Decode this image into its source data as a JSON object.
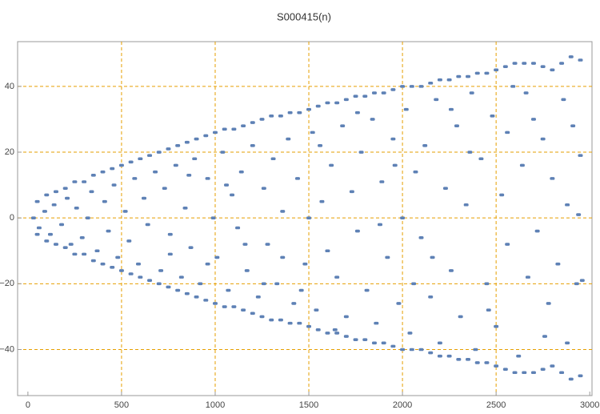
{
  "chart_data": {
    "type": "scatter",
    "title": "S000415(n)",
    "color": "#5e81b5",
    "grid_color": "#e69f00",
    "xlim": [
      -55,
      3012
    ],
    "ylim": [
      -54,
      53.6
    ],
    "xticks": [
      0,
      500,
      1000,
      1500,
      2000,
      2500,
      3000
    ],
    "yticks": [
      {
        "value": -40,
        "label": "−40"
      },
      {
        "value": -20,
        "label": "−20"
      },
      0,
      20,
      40
    ],
    "xgrid": [
      500,
      1000,
      1500,
      2000,
      2500
    ],
    "ygrid": [
      -40,
      -20,
      0,
      20,
      40
    ],
    "x": [
      50,
      100,
      150,
      200,
      250,
      300,
      350,
      400,
      450,
      500,
      550,
      600,
      650,
      700,
      750,
      800,
      850,
      900,
      950,
      1000,
      1050,
      1100,
      1150,
      1200,
      1250,
      1300,
      1350,
      1400,
      1450,
      1500,
      1550,
      1600,
      1650,
      1700,
      1750,
      1800,
      1850,
      1900,
      1950,
      2000,
      2050,
      2100,
      2150,
      2200,
      2250,
      2300,
      2350,
      2400,
      2450,
      2500,
      2550,
      2600,
      2650,
      2700,
      2750,
      2800,
      2850,
      2900,
      2950,
      50,
      100,
      150,
      200,
      250,
      300,
      350,
      400,
      450,
      500,
      550,
      600,
      650,
      700,
      750,
      800,
      850,
      900,
      950,
      1000,
      1050,
      1100,
      1150,
      1200,
      1250,
      1300,
      1350,
      1400,
      1450,
      1500,
      1550,
      1600,
      1650,
      1700,
      1750,
      1800,
      1850,
      1900,
      1950,
      2000,
      2050,
      2100,
      2150,
      2200,
      2250,
      2300,
      2350,
      2400,
      2450,
      2500,
      2550,
      2600,
      2650,
      2700,
      2750,
      2800,
      2850,
      2900,
      2950,
      30,
      60,
      90,
      120,
      140,
      180,
      210,
      230,
      260,
      290,
      320,
      340,
      370,
      410,
      430,
      460,
      480,
      520,
      540,
      570,
      590,
      620,
      640,
      680,
      710,
      730,
      760,
      790,
      820,
      840,
      870,
      890,
      920,
      960,
      990,
      1010,
      1040,
      1070,
      1090,
      1120,
      1140,
      1170,
      1200,
      1230,
      1260,
      1280,
      1310,
      1330,
      1360,
      1390,
      1420,
      1440,
      1480,
      1500,
      1520,
      1540,
      1570,
      1600,
      1620,
      1650,
      1680,
      1700,
      1730,
      1760,
      1780,
      1810,
      1840,
      1860,
      1890,
      1920,
      1950,
      1980,
      2000,
      2020,
      2040,
      2070,
      2100,
      2120,
      2150,
      2180,
      2200,
      2230,
      2260,
      2290,
      2310,
      2340,
      2370,
      2390,
      2420,
      2450,
      2480,
      2500,
      2530,
      2560,
      2590,
      2620,
      2640,
      2670,
      2700,
      2720,
      2750,
      2780,
      2800,
      2830,
      2860,
      2880,
      2910,
      2930,
      2950,
      2960,
      2940,
      2880,
      2760,
      2660,
      2560,
      2460,
      2360,
      2260,
      2160,
      2060,
      1960,
      1880,
      1760,
      1640,
      1560,
      1460,
      1360,
      1260,
      1160,
      1060,
      960,
      860,
      760
    ],
    "values": [
      5,
      7,
      8,
      9,
      11,
      11,
      13,
      14,
      15,
      16,
      17,
      18,
      19,
      20,
      21,
      22,
      23,
      24,
      25,
      26,
      27,
      27,
      28,
      29,
      30,
      31,
      31,
      32,
      32,
      33,
      34,
      35,
      35,
      36,
      37,
      37,
      38,
      38,
      39,
      40,
      40,
      40,
      41,
      42,
      42,
      43,
      43,
      44,
      44,
      45,
      46,
      47,
      47,
      47,
      46,
      45,
      47,
      49,
      48,
      -5,
      -7,
      -8,
      -9,
      -11,
      -11,
      -13,
      -14,
      -15,
      -16,
      -17,
      -18,
      -19,
      -20,
      -21,
      -22,
      -23,
      -24,
      -25,
      -26,
      -27,
      -27,
      -28,
      -29,
      -30,
      -31,
      -31,
      -32,
      -32,
      -33,
      -34,
      -35,
      -35,
      -36,
      -37,
      -37,
      -38,
      -38,
      -39,
      -40,
      -40,
      -40,
      -41,
      -42,
      -42,
      -43,
      -43,
      -44,
      -44,
      -45,
      -46,
      -47,
      -47,
      -47,
      -46,
      -45,
      -47,
      -49,
      -48,
      0,
      -3,
      2,
      -5,
      4,
      -2,
      6,
      -8,
      3,
      -6,
      0,
      8,
      -10,
      5,
      -4,
      10,
      -12,
      2,
      -7,
      12,
      -14,
      6,
      -2,
      14,
      -16,
      9,
      -5,
      16,
      -18,
      3,
      -9,
      18,
      -20,
      12,
      0,
      -12,
      20,
      -22,
      7,
      -3,
      14,
      -16,
      22,
      -24,
      9,
      -8,
      18,
      -20,
      2,
      24,
      -26,
      12,
      -14,
      0,
      26,
      -28,
      5,
      -10,
      16,
      -18,
      28,
      -30,
      8,
      -4,
      20,
      -22,
      30,
      -32,
      11,
      -12,
      24,
      -26,
      0,
      33,
      -35,
      14,
      -6,
      22,
      -24,
      36,
      -38,
      9,
      -16,
      28,
      -30,
      4,
      38,
      -40,
      18,
      -20,
      31,
      -33,
      7,
      -8,
      40,
      -42,
      16,
      -18,
      30,
      -4,
      24,
      -26,
      12,
      -14,
      36,
      -38,
      28,
      -20,
      19,
      -19,
      1,
      4,
      -36,
      38,
      26,
      -28,
      20,
      33,
      -12,
      -20,
      16,
      -2,
      32,
      -34,
      22,
      -22,
      -12,
      -20,
      -8,
      10,
      -14,
      13,
      -11
    ]
  }
}
